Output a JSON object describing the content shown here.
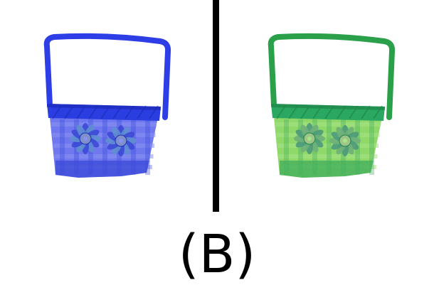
{
  "caption": "(B)",
  "divider_color": "#000000",
  "panels": [
    {
      "name": "blue-basket",
      "handle": "#2e3ee6",
      "rim": "#2a3de0",
      "rim_dark": "#1d2bb8",
      "body": "#6f78ee",
      "body_light": "#8a92f2",
      "body_dark": "#3b4ad8",
      "flower_a": "#5f8fd0",
      "flower_b": "#3b49d6",
      "flower_center": "#7f8fc8"
    },
    {
      "name": "green-basket",
      "handle": "#2aa04a",
      "rim": "#2aa862",
      "rim_dark": "#1e8548",
      "body": "#8fd86a",
      "body_light": "#a7e486",
      "body_dark": "#3fae5c",
      "flower_a": "#6fb07a",
      "flower_b": "#4d9a7a",
      "flower_center": "#9fc48a"
    }
  ]
}
